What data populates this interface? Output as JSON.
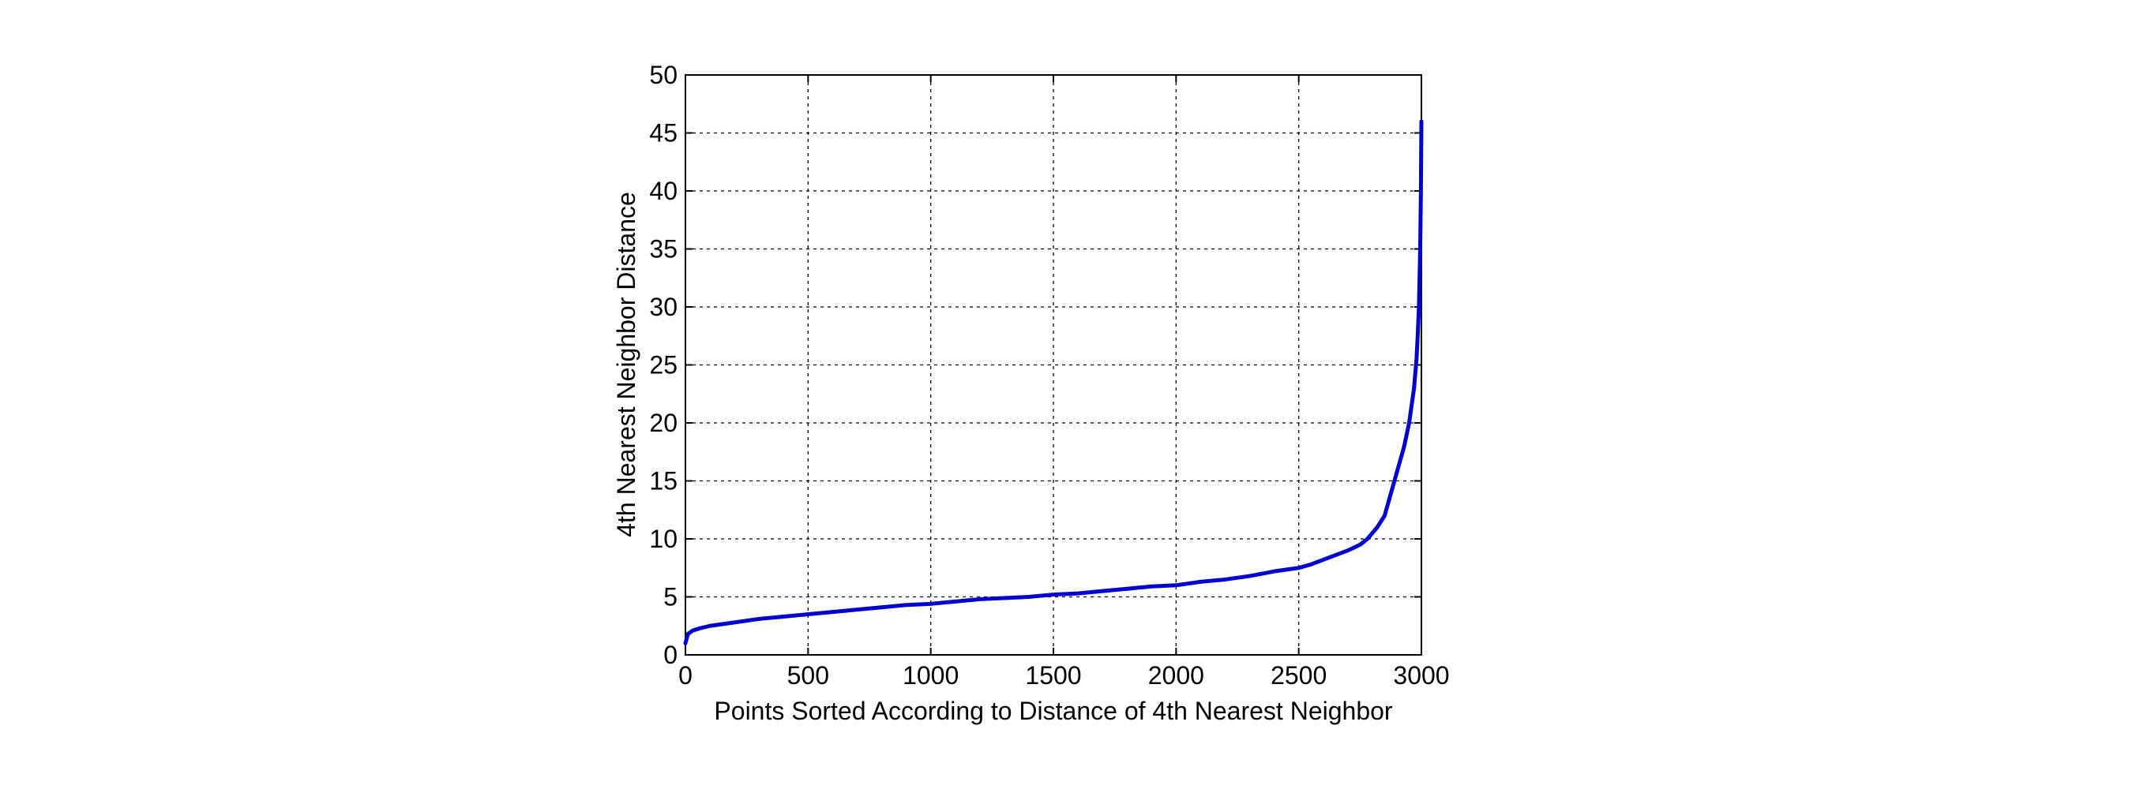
{
  "chart_data": {
    "type": "line",
    "title": "",
    "xlabel": "Points Sorted According to Distance of 4th Nearest Neighbor",
    "ylabel": "4th Nearest Neighbor Distance",
    "xlim": [
      0,
      3000
    ],
    "ylim": [
      0,
      50
    ],
    "xticks": [
      0,
      500,
      1000,
      1500,
      2000,
      2500,
      3000
    ],
    "yticks": [
      0,
      5,
      10,
      15,
      20,
      25,
      30,
      35,
      40,
      45,
      50
    ],
    "grid": true,
    "line_color": "#0000d0",
    "series": [
      {
        "x": [
          0,
          10,
          30,
          60,
          100,
          200,
          300,
          400,
          500,
          600,
          700,
          800,
          900,
          1000,
          1100,
          1200,
          1300,
          1400,
          1500,
          1600,
          1700,
          1800,
          1900,
          2000,
          2100,
          2200,
          2300,
          2400,
          2500,
          2550,
          2600,
          2650,
          2700,
          2750,
          2780,
          2800,
          2820,
          2850,
          2870,
          2890,
          2910,
          2930,
          2950,
          2960,
          2970,
          2980,
          2985,
          2990,
          2995,
          2998,
          3000
        ],
        "y": [
          1.0,
          1.8,
          2.1,
          2.3,
          2.5,
          2.8,
          3.1,
          3.3,
          3.5,
          3.7,
          3.9,
          4.1,
          4.3,
          4.4,
          4.6,
          4.8,
          4.9,
          5.0,
          5.2,
          5.3,
          5.5,
          5.7,
          5.9,
          6.0,
          6.3,
          6.5,
          6.8,
          7.2,
          7.5,
          7.8,
          8.2,
          8.6,
          9.0,
          9.5,
          10.0,
          10.5,
          11.0,
          12.0,
          13.5,
          15.0,
          16.5,
          18.0,
          20.0,
          21.5,
          23.0,
          25.5,
          27.5,
          30.0,
          35.0,
          40.0,
          46.0
        ]
      }
    ]
  }
}
